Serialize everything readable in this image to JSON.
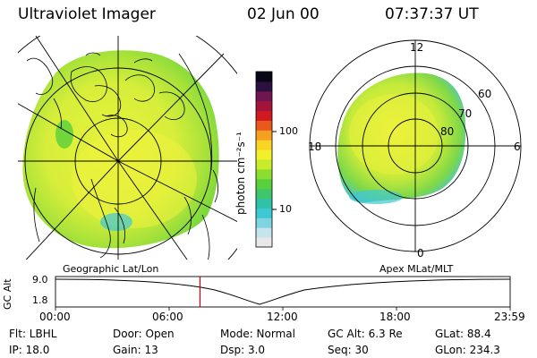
{
  "header": {
    "instrument": "Ultraviolet Imager",
    "date": "02 Jun 00",
    "time": "07:37:37 UT"
  },
  "left_map": {
    "label": "Geographic Lat/Lon"
  },
  "right_map": {
    "label": "Apex MLat/MLT",
    "mlt_labels": {
      "top": "12",
      "left": "18",
      "right": "6",
      "bottom": "0"
    },
    "mlat_labels": [
      "60",
      "70",
      "80"
    ]
  },
  "colorbar": {
    "unit_label": "photon cm⁻²s⁻¹",
    "ticks": [
      "100",
      "10"
    ],
    "colors": [
      "#e8e8e8",
      "#c6e4ec",
      "#7fd4e2",
      "#3ec7d4",
      "#2fc2a6",
      "#3fc66a",
      "#58cf3c",
      "#8bde2e",
      "#c8ec2a",
      "#f1f02a",
      "#f9d425",
      "#f5a11f",
      "#e9581c",
      "#cf1b1f",
      "#a3143a",
      "#6d1650",
      "#2c1040",
      "#060616"
    ]
  },
  "altitude_plot": {
    "ylabel": "GC Alt",
    "yticks": [
      "9.0",
      "1.8"
    ],
    "xticks": [
      "00:00",
      "06:00",
      "12:00",
      "18:00",
      "23:59"
    ],
    "marker_hour": 7.63,
    "marker_color": "#cc0000"
  },
  "status": {
    "flt": "Flt: LBHL",
    "door": "Door: Open",
    "mode": "Mode: Normal",
    "gc_alt": "GC Alt: 6.3 Re",
    "glat": "GLat:  88.4",
    "ip": "IP: 18.0",
    "gain": "Gain: 13",
    "dsp": "Dsp:     3.0",
    "seq": "Seq: 30",
    "glon": "GLon: 234.3"
  }
}
